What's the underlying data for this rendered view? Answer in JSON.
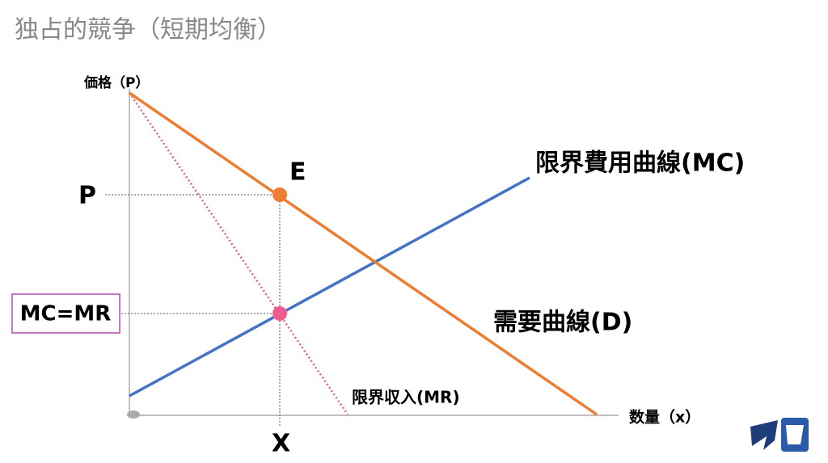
{
  "header": {
    "title": "独占的競争（短期均衡）"
  },
  "axes": {
    "y_label": "価格（P）",
    "x_label": "数量（x）"
  },
  "points": {
    "price": "P",
    "quantity": "X",
    "equilibrium": "E",
    "mc_mr": "MC=MR"
  },
  "curves": {
    "mc": "限界費用曲線(MC)",
    "demand": "需要曲線(D)",
    "mr": "限界収入(MR)"
  }
}
